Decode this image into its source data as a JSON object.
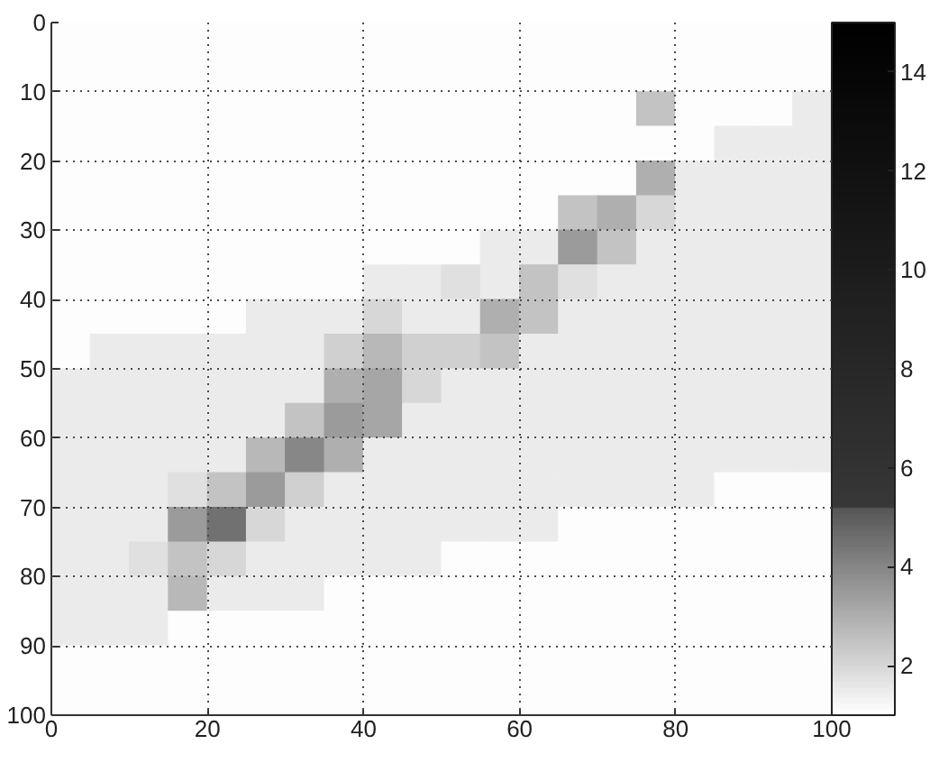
{
  "chart_data": {
    "type": "heatmap",
    "x": [
      2.5,
      7.5,
      12.5,
      17.5,
      22.5,
      27.5,
      32.5,
      37.5,
      42.5,
      47.5,
      52.5,
      57.5,
      62.5,
      67.5,
      72.5,
      77.5,
      82.5,
      87.5,
      92.5,
      97.5
    ],
    "y": [
      2.5,
      7.5,
      12.5,
      17.5,
      22.5,
      27.5,
      32.5,
      37.5,
      42.5,
      47.5,
      52.5,
      57.5,
      62.5,
      67.5,
      72.5,
      77.5,
      82.5,
      87.5,
      92.5,
      97.5
    ],
    "cells": [
      [
        1.1,
        1.1,
        1.1,
        1.1,
        1.1,
        1.1,
        1.1,
        1.1,
        1.1,
        1.1,
        1.1,
        1.1,
        1.1,
        1.1,
        1.1,
        1.1,
        1.1,
        1.1,
        1.1,
        1.1
      ],
      [
        1.1,
        1.1,
        1.1,
        1.1,
        1.1,
        1.1,
        1.1,
        1.1,
        1.1,
        1.1,
        1.1,
        1.1,
        1.1,
        1.1,
        1.1,
        1.1,
        1.1,
        1.1,
        1.1,
        1.1
      ],
      [
        1.1,
        1.1,
        1.1,
        1.1,
        1.1,
        1.1,
        1.1,
        1.1,
        1.1,
        1.1,
        1.1,
        1.1,
        1.1,
        1.1,
        1.1,
        2.5,
        1.1,
        1.1,
        1.1,
        1.5
      ],
      [
        1.1,
        1.1,
        1.1,
        1.1,
        1.1,
        1.1,
        1.1,
        1.1,
        1.1,
        1.1,
        1.1,
        1.1,
        1.1,
        1.1,
        1.1,
        1.1,
        1.1,
        1.5,
        1.5,
        1.5
      ],
      [
        1.1,
        1.1,
        1.1,
        1.1,
        1.1,
        1.1,
        1.1,
        1.1,
        1.1,
        1.1,
        1.1,
        1.1,
        1.1,
        1.1,
        1.1,
        3.0,
        1.5,
        1.5,
        1.5,
        1.5
      ],
      [
        1.1,
        1.1,
        1.1,
        1.1,
        1.1,
        1.1,
        1.1,
        1.1,
        1.1,
        1.1,
        1.1,
        1.1,
        1.1,
        2.5,
        3.0,
        2.0,
        1.5,
        1.5,
        1.5,
        1.5
      ],
      [
        1.1,
        1.1,
        1.1,
        1.1,
        1.1,
        1.1,
        1.1,
        1.1,
        1.1,
        1.1,
        1.1,
        1.5,
        1.5,
        3.5,
        2.5,
        1.5,
        1.5,
        1.5,
        1.5,
        1.5
      ],
      [
        1.1,
        1.1,
        1.1,
        1.1,
        1.1,
        1.1,
        1.1,
        1.1,
        1.5,
        1.5,
        1.8,
        1.5,
        2.5,
        1.8,
        1.5,
        1.5,
        1.5,
        1.5,
        1.5,
        1.5
      ],
      [
        1.1,
        1.1,
        1.1,
        1.1,
        1.1,
        1.5,
        1.5,
        1.5,
        2.0,
        1.5,
        1.5,
        3.0,
        2.5,
        1.5,
        1.5,
        1.5,
        1.5,
        1.5,
        1.5,
        1.5
      ],
      [
        1.1,
        1.5,
        1.5,
        1.5,
        1.5,
        1.5,
        1.5,
        2.2,
        2.8,
        2.2,
        2.2,
        2.5,
        1.5,
        1.5,
        1.5,
        1.5,
        1.5,
        1.5,
        1.5,
        1.5
      ],
      [
        1.5,
        1.5,
        1.5,
        1.5,
        1.5,
        1.5,
        1.5,
        3.0,
        3.2,
        2.0,
        1.5,
        1.5,
        1.5,
        1.5,
        1.5,
        1.5,
        1.5,
        1.5,
        1.5,
        1.5
      ],
      [
        1.5,
        1.5,
        1.5,
        1.5,
        1.5,
        1.5,
        2.5,
        3.5,
        3.2,
        1.5,
        1.5,
        1.5,
        1.5,
        1.5,
        1.5,
        1.5,
        1.5,
        1.5,
        1.5,
        1.5
      ],
      [
        1.5,
        1.5,
        1.5,
        1.5,
        1.5,
        2.8,
        4.0,
        3.0,
        1.5,
        1.5,
        1.5,
        1.5,
        1.5,
        1.5,
        1.5,
        1.5,
        1.5,
        1.5,
        1.5,
        1.5
      ],
      [
        1.5,
        1.5,
        1.5,
        1.8,
        2.5,
        3.5,
        2.2,
        1.5,
        1.5,
        1.5,
        1.5,
        1.5,
        1.5,
        1.5,
        1.5,
        1.5,
        1.5,
        1.1,
        1.1,
        1.1
      ],
      [
        1.5,
        1.5,
        1.5,
        3.5,
        4.5,
        2.0,
        1.5,
        1.5,
        1.5,
        1.5,
        1.5,
        1.5,
        1.5,
        1.1,
        1.1,
        1.1,
        1.1,
        1.1,
        1.1,
        1.1
      ],
      [
        1.5,
        1.5,
        1.8,
        2.5,
        2.0,
        1.5,
        1.5,
        1.5,
        1.5,
        1.5,
        1.1,
        1.1,
        1.1,
        1.1,
        1.1,
        1.1,
        1.1,
        1.1,
        1.1,
        1.1
      ],
      [
        1.5,
        1.5,
        1.5,
        2.8,
        1.5,
        1.5,
        1.5,
        1.1,
        1.1,
        1.1,
        1.1,
        1.1,
        1.1,
        1.1,
        1.1,
        1.1,
        1.1,
        1.1,
        1.1,
        1.1
      ],
      [
        1.5,
        1.5,
        1.5,
        1.1,
        1.1,
        1.1,
        1.1,
        1.1,
        1.1,
        1.1,
        1.1,
        1.1,
        1.1,
        1.1,
        1.1,
        1.1,
        1.1,
        1.1,
        1.1,
        1.1
      ],
      [
        1.1,
        1.1,
        1.1,
        1.1,
        1.1,
        1.1,
        1.1,
        1.1,
        1.1,
        1.1,
        1.1,
        1.1,
        1.1,
        1.1,
        1.1,
        1.1,
        1.1,
        1.1,
        1.1,
        1.1
      ],
      [
        1.1,
        1.1,
        1.1,
        1.1,
        1.1,
        1.1,
        1.1,
        1.1,
        1.1,
        1.1,
        1.1,
        1.1,
        1.1,
        1.1,
        1.1,
        1.1,
        1.1,
        1.1,
        1.1,
        1.1
      ]
    ],
    "xlim": [
      0,
      100
    ],
    "ylim": [
      100,
      0
    ],
    "xticks": [
      0,
      20,
      40,
      60,
      80,
      100
    ],
    "yticks": [
      0,
      10,
      20,
      30,
      40,
      50,
      60,
      70,
      80,
      90,
      100
    ],
    "clim": [
      1,
      15
    ],
    "cticks": [
      2,
      4,
      6,
      8,
      10,
      12,
      14
    ],
    "grid": true
  }
}
